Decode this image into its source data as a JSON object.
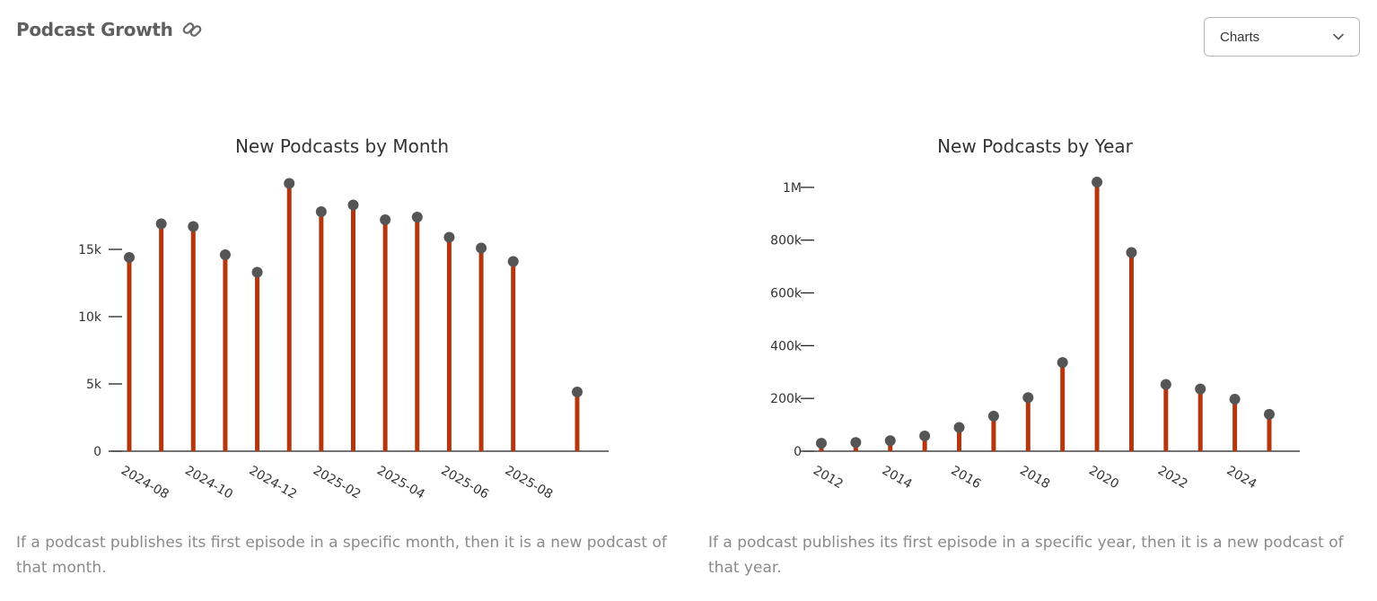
{
  "header": {
    "title": "Podcast Growth",
    "link_icon": "link-icon"
  },
  "dropdown": {
    "value": "Charts",
    "icon": "chevron-down-icon"
  },
  "colors": {
    "stem": "#b5350c",
    "dot": "#555555",
    "axis": "#222222"
  },
  "chart_data": [
    {
      "type": "lollipop",
      "title": "New Podcasts by Month",
      "xlabel": "",
      "ylabel": "",
      "categories": [
        "2024-08",
        "2024-09",
        "2024-10",
        "2024-11",
        "2024-12",
        "2025-01",
        "2025-02",
        "2025-03",
        "2025-04",
        "2025-05",
        "2025-06",
        "2025-07",
        "2025-08",
        "2025-09",
        "2025-10"
      ],
      "values": [
        14400,
        16900,
        16700,
        14600,
        13300,
        19900,
        17800,
        18300,
        17200,
        17400,
        15900,
        15100,
        14100,
        null,
        4400
      ],
      "x_tick_labels": [
        "2024-08",
        "2024-10",
        "2024-12",
        "2025-02",
        "2025-04",
        "2025-06",
        "2025-08"
      ],
      "y_ticks": [
        0,
        5000,
        10000,
        15000
      ],
      "y_tick_labels": [
        "0",
        "5k",
        "10k",
        "15k"
      ],
      "ylim": [
        0,
        20000
      ],
      "grid": false,
      "caption": "If a podcast publishes its first episode in a specific month, then it is a new podcast of that month."
    },
    {
      "type": "lollipop",
      "title": "New Podcasts by Year",
      "xlabel": "",
      "ylabel": "",
      "categories": [
        "2012",
        "2013",
        "2014",
        "2015",
        "2016",
        "2017",
        "2018",
        "2019",
        "2020",
        "2021",
        "2022",
        "2023",
        "2024",
        "2025"
      ],
      "values": [
        30000,
        33000,
        40000,
        58000,
        90000,
        133000,
        203000,
        336000,
        1020000,
        753000,
        253000,
        236000,
        197000,
        140000
      ],
      "x_tick_labels": [
        "2012",
        "2014",
        "2016",
        "2018",
        "2020",
        "2022",
        "2024"
      ],
      "y_ticks": [
        0,
        200000,
        400000,
        600000,
        800000,
        1000000
      ],
      "y_tick_labels": [
        "0",
        "200k",
        "400k",
        "600k",
        "800k",
        "1M"
      ],
      "ylim": [
        0,
        1020000
      ],
      "grid": false,
      "caption": "If a podcast publishes its first episode in a specific year, then it is a new podcast of that year."
    }
  ]
}
